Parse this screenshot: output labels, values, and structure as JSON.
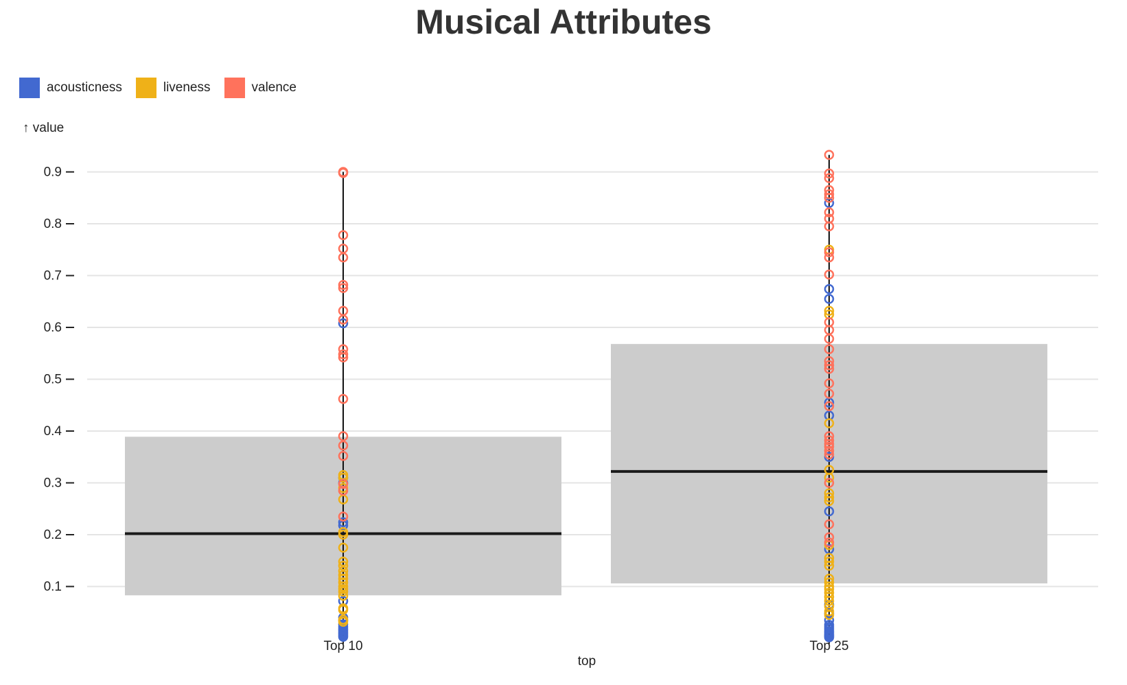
{
  "chart_data": {
    "type": "boxplot-with-points",
    "title": "Musical Attributes",
    "xlabel": "top",
    "ylabel": "↑ value",
    "ylim": [
      0,
      0.95
    ],
    "yticks": [
      0.1,
      0.2,
      0.3,
      0.4,
      0.5,
      0.6,
      0.7,
      0.8,
      0.9
    ],
    "ytick_labels": [
      "0.1",
      "0.2",
      "0.3",
      "0.4",
      "0.5",
      "0.6",
      "0.7",
      "0.8",
      "0.9"
    ],
    "categories": [
      "Top 10",
      "Top 25"
    ],
    "grid": true,
    "legend_position": "top-left",
    "boxes": [
      {
        "category": "Top 10",
        "q1": 0.083,
        "median": 0.202,
        "q3": 0.389,
        "min": 0.0,
        "max": 0.9
      },
      {
        "category": "Top 25",
        "q1": 0.106,
        "median": 0.322,
        "q3": 0.568,
        "min": 0.0,
        "max": 0.933
      }
    ],
    "series": [
      {
        "name": "acousticness",
        "color": "#4269d0",
        "points": {
          "Top 10": [
            0.003,
            0.006,
            0.009,
            0.012,
            0.015,
            0.018,
            0.022,
            0.027,
            0.035,
            0.04,
            0.072,
            0.218,
            0.224,
            0.3,
            0.31,
            0.608
          ],
          "Top 25": [
            0.002,
            0.004,
            0.006,
            0.008,
            0.011,
            0.014,
            0.018,
            0.022,
            0.026,
            0.035,
            0.048,
            0.065,
            0.172,
            0.245,
            0.35,
            0.43,
            0.455,
            0.655,
            0.674,
            0.84
          ]
        }
      },
      {
        "name": "liveness",
        "color": "#efb118",
        "points": {
          "Top 10": [
            0.032,
            0.036,
            0.055,
            0.058,
            0.082,
            0.09,
            0.095,
            0.1,
            0.108,
            0.115,
            0.122,
            0.13,
            0.14,
            0.148,
            0.175,
            0.2,
            0.205,
            0.268,
            0.29,
            0.31,
            0.315
          ],
          "Top 25": [
            0.045,
            0.052,
            0.062,
            0.072,
            0.08,
            0.088,
            0.095,
            0.1,
            0.108,
            0.115,
            0.14,
            0.148,
            0.155,
            0.18,
            0.265,
            0.272,
            0.28,
            0.31,
            0.325,
            0.415,
            0.625,
            0.632,
            0.75
          ]
        }
      },
      {
        "name": "valence",
        "color": "#ff725c",
        "points": {
          "Top 10": [
            0.9,
            0.898,
            0.778,
            0.752,
            0.735,
            0.682,
            0.676,
            0.632,
            0.615,
            0.558,
            0.548,
            0.542,
            0.462,
            0.39,
            0.372,
            0.352,
            0.298,
            0.285,
            0.235
          ],
          "Top 25": [
            0.933,
            0.897,
            0.888,
            0.865,
            0.857,
            0.85,
            0.822,
            0.81,
            0.795,
            0.745,
            0.735,
            0.702,
            0.61,
            0.595,
            0.578,
            0.558,
            0.535,
            0.527,
            0.52,
            0.492,
            0.472,
            0.448,
            0.39,
            0.382,
            0.375,
            0.37,
            0.362,
            0.355,
            0.3,
            0.22,
            0.195,
            0.185
          ]
        }
      }
    ]
  }
}
